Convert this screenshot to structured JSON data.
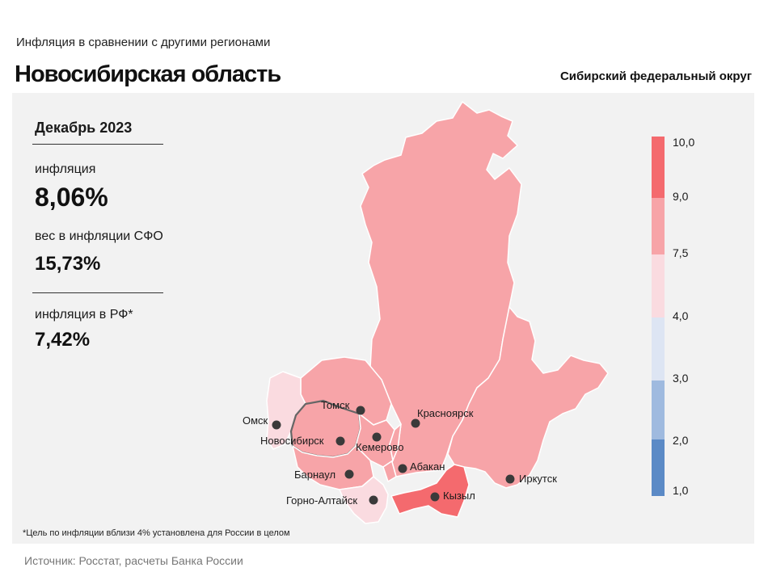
{
  "header": {
    "subtitle": "Инфляция  в сравнении  с другими  регионами",
    "title": "Новосибирская область",
    "district": "Сибирский федеральный округ"
  },
  "stats": {
    "period": "Декабрь 2023",
    "inflation_label": "инфляция",
    "inflation_value": "8,06%",
    "weight_label": "вес в инфляции  СФО",
    "weight_value": "15,73%",
    "rf_label": "инфляция  в РФ*",
    "rf_value": "7,42%"
  },
  "legend": {
    "ticks": [
      "10,0",
      "9,0",
      "7,5",
      "4,0",
      "3,0",
      "2,0",
      "1,0"
    ],
    "colors": {
      "9_10": "#f46a6e",
      "7.5_9": "#f7a4a8",
      "4_7.5": "#fadbe0",
      "3_4": "#dde5f3",
      "2_3": "#9fbadf",
      "1_2": "#5b8ac6"
    }
  },
  "map": {
    "highlighted_region": "Новосибирская область",
    "cities": [
      {
        "id": "omsk",
        "name": "Омск"
      },
      {
        "id": "tomsk",
        "name": "Томск"
      },
      {
        "id": "novosibirsk",
        "name": "Новосибирск"
      },
      {
        "id": "kemerovo",
        "name": "Кемерово"
      },
      {
        "id": "krasnoyarsk",
        "name": "Красноярск"
      },
      {
        "id": "barnaul",
        "name": "Барнаул"
      },
      {
        "id": "abakan",
        "name": "Абакан"
      },
      {
        "id": "gorno_altaysk",
        "name": "Горно-Алтайск"
      },
      {
        "id": "kyzyl",
        "name": "Кызыл"
      },
      {
        "id": "irkutsk",
        "name": "Иркутск"
      }
    ]
  },
  "footnote": "*Цель по инфляции вблизи 4% установлена для России в целом",
  "source": "Источник: Росстат, расчеты Банка России"
}
